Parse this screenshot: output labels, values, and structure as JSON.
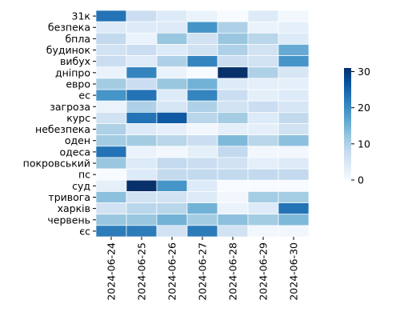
{
  "chart_data": {
    "type": "heatmap",
    "title": "",
    "xlabel": "",
    "ylabel": "",
    "x": [
      "2024-06-24",
      "2024-06-25",
      "2024-06-26",
      "2024-06-27",
      "2024-06-28",
      "2024-06-29",
      "2024-06-30"
    ],
    "y": [
      "31к",
      "безпека",
      "бпла",
      "будинок",
      "вибух",
      "дніпро",
      "евро",
      "ес",
      "загроза",
      "курс",
      "небезпека",
      "оден",
      "одеса",
      "покровський",
      "пс",
      "суд",
      "тривога",
      "харків",
      "червень",
      "єс"
    ],
    "values": [
      [
        23,
        7,
        4,
        2,
        0,
        4,
        1
      ],
      [
        4,
        4,
        4,
        19,
        10,
        2,
        3
      ],
      [
        8,
        2,
        12,
        6,
        12,
        9,
        4
      ],
      [
        6,
        7,
        4,
        6,
        10,
        6,
        16
      ],
      [
        7,
        4,
        10,
        21,
        7,
        6,
        19
      ],
      [
        2,
        21,
        2,
        0,
        31,
        10,
        5
      ],
      [
        11,
        7,
        12,
        15,
        4,
        3,
        3
      ],
      [
        19,
        23,
        4,
        21,
        7,
        3,
        4
      ],
      [
        2,
        10,
        5,
        10,
        6,
        7,
        5
      ],
      [
        6,
        23,
        26,
        9,
        11,
        4,
        8
      ],
      [
        10,
        4,
        3,
        1,
        3,
        3,
        6
      ],
      [
        11,
        11,
        9,
        7,
        14,
        9,
        13
      ],
      [
        23,
        2,
        1,
        3,
        8,
        1,
        1
      ],
      [
        12,
        4,
        8,
        7,
        6,
        3,
        4
      ],
      [
        0,
        4,
        8,
        8,
        8,
        8,
        8
      ],
      [
        3,
        31,
        19,
        4,
        0,
        0,
        0
      ],
      [
        13,
        6,
        6,
        4,
        1,
        11,
        11
      ],
      [
        6,
        9,
        9,
        15,
        2,
        4,
        23
      ],
      [
        12,
        12,
        15,
        11,
        13,
        11,
        14
      ],
      [
        22,
        22,
        6,
        22,
        6,
        1,
        1
      ]
    ],
    "colorbar": {
      "min": 0,
      "max": 31,
      "ticks": [
        0,
        10,
        20,
        30
      ]
    },
    "colormap": [
      "#f7fbff",
      "#deebf7",
      "#c6dbef",
      "#9ecae1",
      "#6baed6",
      "#4292c6",
      "#2171b5",
      "#08519c",
      "#08306b"
    ],
    "grid_line_color": "#ffffff"
  }
}
